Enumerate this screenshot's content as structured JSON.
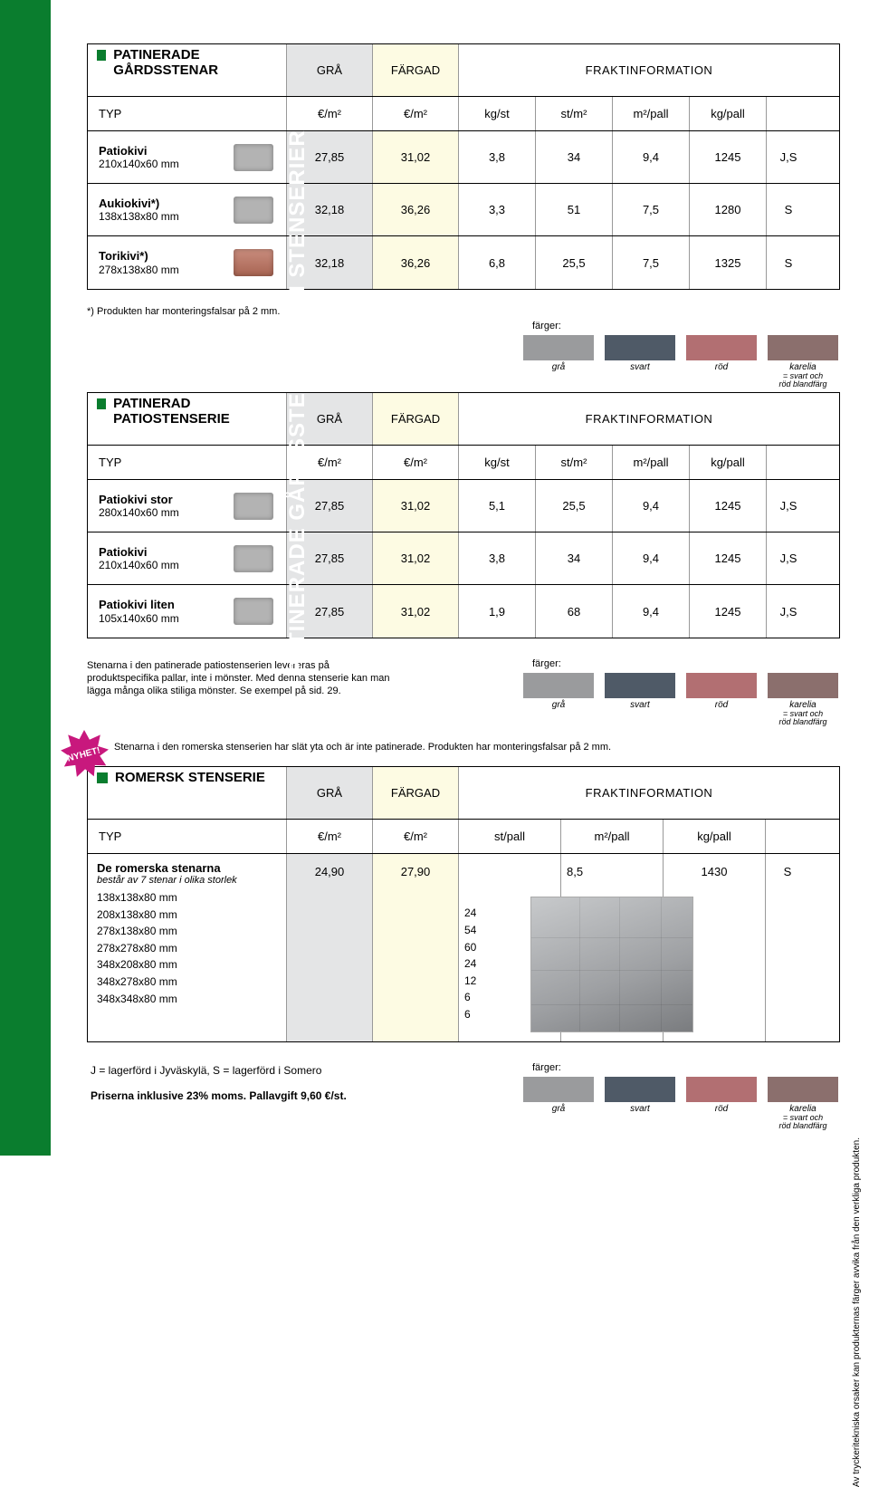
{
  "sidebar": {
    "title": "PATINERADE GÅRDSSTENAR OCH STENSERIER"
  },
  "block1": {
    "title": "PATINERADE GÅRDSSTENAR",
    "hdr": {
      "gra": "GRÅ",
      "fargad": "FÄRGAD",
      "frakt": "FRAKTINFORMATION"
    },
    "sub": {
      "typ": "TYP",
      "gra": "€/m²",
      "fargad": "€/m²",
      "c1": "kg/st",
      "c2": "st/m²",
      "c3": "m²/pall",
      "c4": "kg/pall"
    },
    "rows": [
      {
        "name": "Patiokivi",
        "dim": "210x140x60 mm",
        "thumb": "gray",
        "gra": "27,85",
        "fargad": "31,02",
        "c1": "3,8",
        "c2": "34",
        "c3": "9,4",
        "c4": "1245",
        "code": "J,S"
      },
      {
        "name": "Aukiokivi*)",
        "dim": "138x138x80 mm",
        "thumb": "gray",
        "gra": "32,18",
        "fargad": "36,26",
        "c1": "3,3",
        "c2": "51",
        "c3": "7,5",
        "c4": "1280",
        "code": "S"
      },
      {
        "name": "Torikivi*)",
        "dim": "278x138x80 mm",
        "thumb": "brick",
        "gra": "32,18",
        "fargad": "36,26",
        "c1": "6,8",
        "c2": "25,5",
        "c3": "7,5",
        "c4": "1325",
        "code": "S"
      }
    ],
    "footnote": "*) Produkten har monteringsfalsar på 2 mm.",
    "colors": {
      "label": "färger:",
      "items": [
        {
          "cls": "sw-gra",
          "label": "grå"
        },
        {
          "cls": "sw-svart",
          "label": "svart"
        },
        {
          "cls": "sw-rod",
          "label": "röd"
        },
        {
          "cls": "sw-kar",
          "label": "karelia",
          "sub": "= svart och\nröd blandfärg"
        }
      ]
    }
  },
  "block2": {
    "title": "PATINERAD PATIOSTENSERIE",
    "hdr": {
      "gra": "GRÅ",
      "fargad": "FÄRGAD",
      "frakt": "FRAKTINFORMATION"
    },
    "sub": {
      "typ": "TYP",
      "gra": "€/m²",
      "fargad": "€/m²",
      "c1": "kg/st",
      "c2": "st/m²",
      "c3": "m²/pall",
      "c4": "kg/pall"
    },
    "rows": [
      {
        "name": "Patiokivi stor",
        "dim": "280x140x60 mm",
        "thumb": "gray",
        "gra": "27,85",
        "fargad": "31,02",
        "c1": "5,1",
        "c2": "25,5",
        "c3": "9,4",
        "c4": "1245",
        "code": "J,S"
      },
      {
        "name": "Patiokivi",
        "dim": "210x140x60 mm",
        "thumb": "gray",
        "gra": "27,85",
        "fargad": "31,02",
        "c1": "3,8",
        "c2": "34",
        "c3": "9,4",
        "c4": "1245",
        "code": "J,S"
      },
      {
        "name": "Patiokivi liten",
        "dim": "105x140x60 mm",
        "thumb": "gray",
        "gra": "27,85",
        "fargad": "31,02",
        "c1": "1,9",
        "c2": "68",
        "c3": "9,4",
        "c4": "1245",
        "code": "J,S"
      }
    ],
    "note": "Stenarna i den patinerade patiostenserien levereras på produktspecifika pallar, inte i mönster. Med denna stenserie kan man lägga många olika stiliga mönster. Se exempel på sid. 29.",
    "colors": {
      "label": "färger:",
      "items": [
        {
          "cls": "sw-gra",
          "label": "grå"
        },
        {
          "cls": "sw-svart",
          "label": "svart"
        },
        {
          "cls": "sw-rod",
          "label": "röd"
        },
        {
          "cls": "sw-kar",
          "label": "karelia",
          "sub": "= svart och\nröd blandfärg"
        }
      ]
    }
  },
  "nyhet": "NYHET!",
  "roman_note": "Stenarna i den romerska stenserien har slät yta och är inte patinerade. Produkten har monteringsfalsar på 2 mm.",
  "block3": {
    "title": "ROMERSK STENSERIE",
    "hdr": {
      "gra": "GRÅ",
      "fargad": "FÄRGAD",
      "frakt": "FRAKTINFORMATION"
    },
    "sub": {
      "typ": "TYP",
      "gra": "€/m²",
      "fargad": "€/m²",
      "c1": "st/pall",
      "c2": "m²/pall",
      "c3": "kg/pall"
    },
    "lead": {
      "name": "De romerska stenarna",
      "desc": "består av 7 stenar i olika storlek",
      "gra": "24,90",
      "fargad": "27,90",
      "c1": "",
      "c2": "8,5",
      "c3": "1430",
      "code": "S"
    },
    "sizes": [
      {
        "dim": "138x138x80 mm",
        "n": "24"
      },
      {
        "dim": "208x138x80 mm",
        "n": "54"
      },
      {
        "dim": "278x138x80 mm",
        "n": "60"
      },
      {
        "dim": "278x278x80 mm",
        "n": "24"
      },
      {
        "dim": "348x208x80 mm",
        "n": "12"
      },
      {
        "dim": "348x278x80 mm",
        "n": "6"
      },
      {
        "dim": "348x348x80 mm",
        "n": "6"
      }
    ],
    "colors": {
      "label": "färger:",
      "items": [
        {
          "cls": "sw-gra",
          "label": "grå"
        },
        {
          "cls": "sw-svart",
          "label": "svart"
        },
        {
          "cls": "sw-rod",
          "label": "röd"
        },
        {
          "cls": "sw-kar",
          "label": "karelia",
          "sub": "= svart och\nröd blandfärg"
        }
      ]
    }
  },
  "legend": "J = lagerförd i Jyväskylä, S = lagerförd i Somero",
  "price": "Priserna inklusive 23% moms. Pallavgift 9,60 €/st.",
  "sidenote": "Av tryckeritekniska orsaker kan produkternas färger avvika från den verkliga produkten."
}
